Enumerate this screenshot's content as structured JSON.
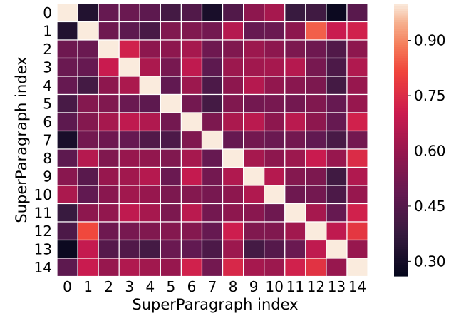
{
  "chart_data": {
    "type": "heatmap",
    "title": "",
    "xlabel": "SuperParagraph index",
    "ylabel": "SuperParagraph index",
    "x_categories": [
      "0",
      "1",
      "2",
      "3",
      "4",
      "5",
      "6",
      "7",
      "8",
      "9",
      "10",
      "11",
      "12",
      "13",
      "14"
    ],
    "y_categories": [
      "0",
      "1",
      "2",
      "3",
      "4",
      "5",
      "6",
      "7",
      "8",
      "9",
      "10",
      "11",
      "12",
      "13",
      "14"
    ],
    "values": [
      [
        1.0,
        0.33,
        0.49,
        0.5,
        0.47,
        0.41,
        0.44,
        0.31,
        0.44,
        0.58,
        0.63,
        0.38,
        0.4,
        0.28,
        0.46
      ],
      [
        0.33,
        1.0,
        0.51,
        0.47,
        0.42,
        0.55,
        0.55,
        0.52,
        0.66,
        0.49,
        0.5,
        0.58,
        0.85,
        0.7,
        0.72
      ],
      [
        0.51,
        0.5,
        1.0,
        0.72,
        0.58,
        0.58,
        0.63,
        0.51,
        0.55,
        0.61,
        0.58,
        0.54,
        0.51,
        0.44,
        0.58
      ],
      [
        0.5,
        0.49,
        0.7,
        1.0,
        0.64,
        0.53,
        0.68,
        0.47,
        0.61,
        0.62,
        0.63,
        0.66,
        0.53,
        0.43,
        0.65
      ],
      [
        0.49,
        0.41,
        0.58,
        0.64,
        1.0,
        0.48,
        0.61,
        0.43,
        0.58,
        0.66,
        0.59,
        0.57,
        0.54,
        0.41,
        0.6
      ],
      [
        0.42,
        0.56,
        0.55,
        0.5,
        0.47,
        1.0,
        0.52,
        0.41,
        0.55,
        0.52,
        0.53,
        0.52,
        0.55,
        0.49,
        0.6
      ],
      [
        0.47,
        0.56,
        0.63,
        0.68,
        0.65,
        0.52,
        1.0,
        0.54,
        0.64,
        0.67,
        0.58,
        0.67,
        0.58,
        0.49,
        0.72
      ],
      [
        0.31,
        0.52,
        0.51,
        0.49,
        0.44,
        0.43,
        0.55,
        1.0,
        0.49,
        0.52,
        0.5,
        0.52,
        0.48,
        0.42,
        0.52
      ],
      [
        0.47,
        0.66,
        0.55,
        0.6,
        0.59,
        0.55,
        0.63,
        0.49,
        1.0,
        0.63,
        0.58,
        0.61,
        0.7,
        0.6,
        0.75
      ],
      [
        0.57,
        0.46,
        0.6,
        0.62,
        0.66,
        0.5,
        0.69,
        0.52,
        0.65,
        1.0,
        0.66,
        0.56,
        0.54,
        0.4,
        0.65
      ],
      [
        0.64,
        0.48,
        0.57,
        0.62,
        0.6,
        0.54,
        0.56,
        0.53,
        0.58,
        0.65,
        1.0,
        0.51,
        0.52,
        0.43,
        0.6
      ],
      [
        0.38,
        0.58,
        0.59,
        0.68,
        0.63,
        0.54,
        0.67,
        0.52,
        0.58,
        0.57,
        0.51,
        1.0,
        0.63,
        0.49,
        0.72
      ],
      [
        0.43,
        0.82,
        0.51,
        0.53,
        0.55,
        0.56,
        0.56,
        0.49,
        0.71,
        0.55,
        0.55,
        0.62,
        1.0,
        0.68,
        0.78
      ],
      [
        0.28,
        0.69,
        0.45,
        0.44,
        0.41,
        0.5,
        0.48,
        0.43,
        0.61,
        0.41,
        0.45,
        0.5,
        0.68,
        1.0,
        0.6
      ],
      [
        0.47,
        0.7,
        0.6,
        0.65,
        0.62,
        0.6,
        0.72,
        0.52,
        0.74,
        0.63,
        0.61,
        0.72,
        0.77,
        0.6,
        1.0
      ]
    ],
    "vmin": 0.26,
    "vmax": 1.0,
    "colormap": "rocket",
    "cell_border_color": "#ffffff",
    "colorbar_ticks": [
      0.3,
      0.45,
      0.6,
      0.75,
      0.9
    ],
    "colorbar_tick_labels": [
      "0.30",
      "0.45",
      "0.60",
      "0.75",
      "0.90"
    ]
  }
}
